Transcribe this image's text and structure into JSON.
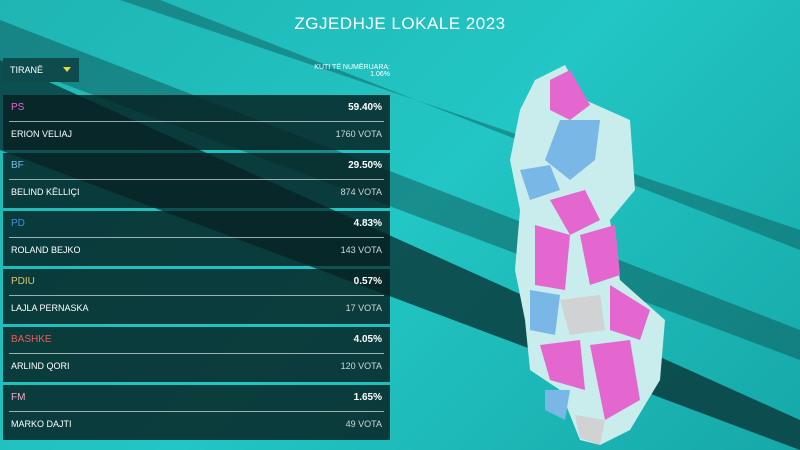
{
  "header": {
    "title": "ZGJEDHJE LOKALE 2023"
  },
  "filter": {
    "selected": "TIRANË",
    "counted": "KUTI TË NUMËRUARA: 1.06%"
  },
  "results": [
    {
      "party": "PS",
      "color": "#e466cf",
      "percent": "59.40%",
      "candidate": "ERION VELIAJ",
      "votes": "1760 VOTA"
    },
    {
      "party": "BF",
      "color": "#79b8e6",
      "percent": "29.50%",
      "candidate": "BELIND KËLLIÇI",
      "votes": "874 VOTA"
    },
    {
      "party": "PD",
      "color": "#3d8fdc",
      "percent": "4.83%",
      "candidate": "ROLAND BEJKO",
      "votes": "143 VOTA"
    },
    {
      "party": "PDIU",
      "color": "#d9c46a",
      "percent": "0.57%",
      "candidate": "LAJLA PERNASKA",
      "votes": "17 VOTA"
    },
    {
      "party": "BASHKE",
      "color": "#f05858",
      "percent": "4.05%",
      "candidate": "ARLIND QORI",
      "votes": "120 VOTA"
    },
    {
      "party": "FM",
      "color": "#f4a6c6",
      "percent": "1.65%",
      "candidate": "MARKO DAJTI",
      "votes": "49 VOTA"
    }
  ]
}
